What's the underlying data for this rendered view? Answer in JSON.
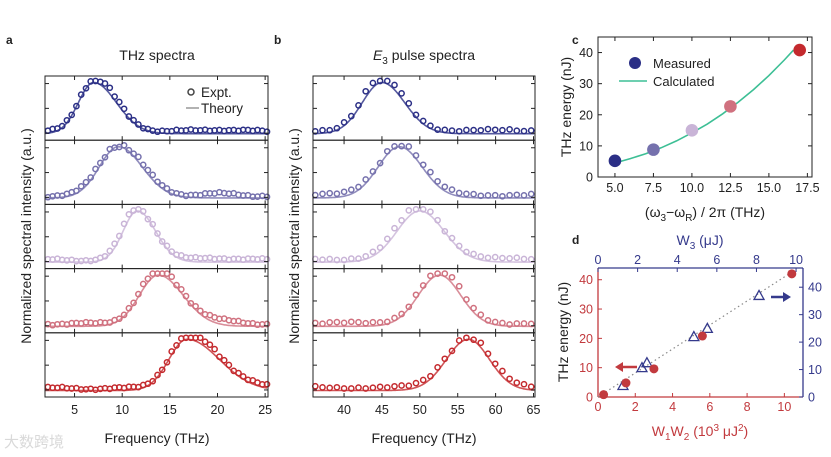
{
  "panel_labels": {
    "a": "a",
    "b": "b",
    "c": "c",
    "d": "d"
  },
  "watermark": "大数跨境",
  "chart_data": [
    {
      "id": "a",
      "type": "line",
      "title": "THz spectra",
      "xlabel": "Frequency (THz)",
      "ylabel": "Normalized spectral intensity (a.u.)",
      "xlim": [
        1.9,
        25.3
      ],
      "xticks": [
        5,
        10,
        15,
        20,
        25
      ],
      "legend": {
        "position": "top-right",
        "entries": [
          "Expt.",
          "Theory"
        ]
      },
      "series": [
        {
          "name": "trace 1",
          "color": "#2b2f86",
          "peak_THz": 7.0,
          "sigma_left": 1.6,
          "sigma_right": 2.4,
          "baseline": 0.05
        },
        {
          "name": "trace 2",
          "color": "#7571ad",
          "peak_THz": 9.6,
          "sigma_left": 2.0,
          "sigma_right": 2.5,
          "baseline": 0.05
        },
        {
          "name": "trace 3",
          "color": "#c9b4d7",
          "peak_THz": 11.6,
          "sigma_left": 1.5,
          "sigma_right": 1.9,
          "baseline": 0.05
        },
        {
          "name": "trace 4",
          "color": "#d0717f",
          "peak_THz": 13.8,
          "sigma_left": 2.0,
          "sigma_right": 2.6,
          "baseline": 0.06
        },
        {
          "name": "trace 5",
          "color": "#c42a2e",
          "peak_THz": 16.8,
          "sigma_left": 1.9,
          "sigma_right": 3.4,
          "baseline": 0.05
        }
      ]
    },
    {
      "id": "b",
      "type": "line",
      "title_parts": [
        "E",
        "3",
        " pulse spectra"
      ],
      "xlabel": "Frequency (THz)",
      "ylabel": "Normalized spectral intensity (a.u.)",
      "xlim": [
        35.9,
        65.2
      ],
      "xticks": [
        40,
        45,
        50,
        55,
        60,
        65
      ],
      "series": [
        {
          "name": "trace 1",
          "color": "#2b2f86",
          "peak_THz": 45.0,
          "sigma_left": 2.6,
          "sigma_right": 3.0,
          "baseline": 0.05
        },
        {
          "name": "trace 2",
          "color": "#7571ad",
          "peak_THz": 47.3,
          "sigma_left": 2.8,
          "sigma_right": 3.0,
          "baseline": 0.05
        },
        {
          "name": "trace 3",
          "color": "#c9b4d7",
          "peak_THz": 50.0,
          "sigma_left": 3.0,
          "sigma_right": 3.2,
          "baseline": 0.05
        },
        {
          "name": "trace 4",
          "color": "#d0717f",
          "peak_THz": 52.6,
          "sigma_left": 2.8,
          "sigma_right": 2.8,
          "baseline": 0.05
        },
        {
          "name": "trace 5",
          "color": "#c42a2e",
          "peak_THz": 56.4,
          "sigma_left": 2.9,
          "sigma_right": 2.8,
          "baseline": 0.05
        }
      ]
    },
    {
      "id": "c",
      "type": "scatter",
      "xlabel_parts": [
        "(ω",
        "3",
        "−ω",
        "R",
        ") / 2π (THz)"
      ],
      "ylabel": "THz energy (nJ)",
      "xlim": [
        3.9,
        17.8
      ],
      "ylim": [
        0,
        45
      ],
      "xticks": [
        "5.0",
        "7.5",
        "10.0",
        "12.5",
        "15.0",
        "17.5"
      ],
      "yticks": [
        0,
        10,
        20,
        30,
        40
      ],
      "legend": {
        "position": "top-left",
        "entries": [
          "Measured",
          "Calculated"
        ]
      },
      "measured": {
        "x": [
          5.0,
          7.5,
          10.0,
          12.5,
          17.0
        ],
        "y": [
          5.2,
          8.8,
          15.0,
          22.7,
          40.8
        ],
        "colors": [
          "#2b2f86",
          "#7571ad",
          "#c9b4d7",
          "#d0717f",
          "#c42a2e"
        ]
      },
      "calculated": {
        "color": "#3dbf95",
        "x": [
          5.0,
          6.0,
          7.0,
          8.0,
          9.0,
          10.0,
          11.0,
          12.0,
          13.0,
          14.0,
          15.0,
          16.0,
          16.6
        ],
        "y": [
          4.5,
          5.9,
          7.5,
          9.4,
          11.6,
          14.2,
          17.0,
          20.3,
          24.0,
          28.1,
          32.6,
          37.6,
          40.8
        ]
      }
    },
    {
      "id": "d",
      "type": "scatter",
      "xlabel_parts": [
        "W",
        "1",
        "W",
        "2",
        " (10",
        "3",
        " μJ",
        "2",
        ")"
      ],
      "x2label_parts": [
        "W",
        "3",
        " (μJ)"
      ],
      "ylabel": "THz energy (nJ)",
      "xlim": [
        0,
        11
      ],
      "x2lim": [
        0,
        10.35
      ],
      "ylim": [
        0,
        44
      ],
      "y2lim": [
        0,
        47
      ],
      "xticks": [
        0,
        2,
        4,
        6,
        8,
        10
      ],
      "x2ticks": [
        0,
        2,
        4,
        6,
        8,
        10
      ],
      "yticks": [
        0,
        10,
        20,
        30,
        40
      ],
      "y2ticks": [
        0,
        10,
        20,
        30,
        40
      ],
      "colors": {
        "left_bottom": "#c23a3e",
        "right_top": "#353a8c",
        "fit": "#888888"
      },
      "circles_W1W2": {
        "x": [
          0.3,
          1.5,
          3.0,
          5.6,
          10.4
        ],
        "y": [
          0.8,
          4.8,
          9.6,
          20.8,
          42.0
        ]
      },
      "triangles_W3": {
        "x": [
          1.26,
          2.22,
          2.47,
          4.84,
          5.52,
          8.13
        ],
        "y": [
          4.2,
          10.7,
          12.5,
          22.0,
          25.0,
          37.0
        ]
      },
      "fit_line": {
        "x": [
          0,
          10.5
        ],
        "y": [
          0,
          43
        ]
      }
    }
  ]
}
